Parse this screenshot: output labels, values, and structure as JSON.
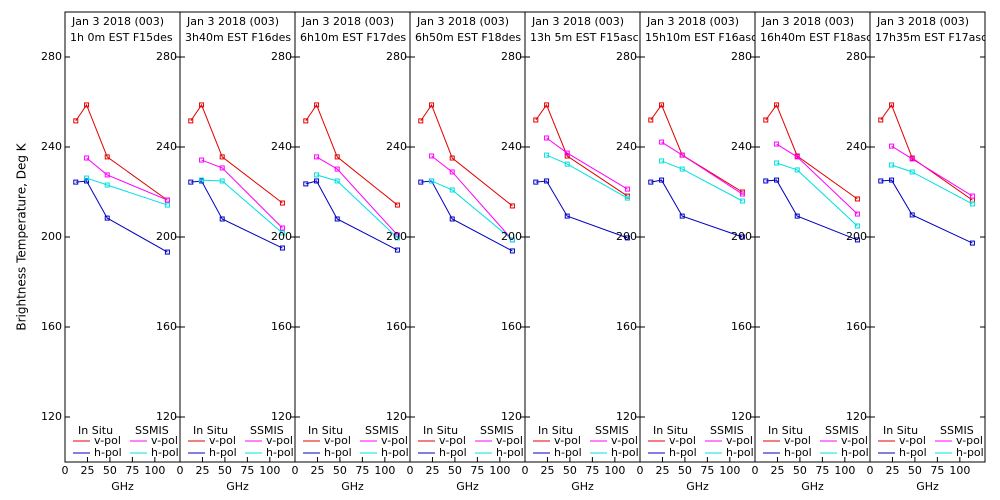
{
  "chart_data": [
    {
      "type": "line",
      "title": "Jan 3 2018 (003)",
      "subtitle": "1h 0m  EST F15des",
      "x_label": "GHz",
      "y_label": "Brightness Temperature, Deg K",
      "xlim": [
        0,
        128
      ],
      "xticks": [
        0,
        25,
        50,
        75,
        100
      ],
      "ylim": [
        100,
        300
      ],
      "yticks": [
        120,
        160,
        200,
        240,
        280
      ],
      "series": [
        {
          "name": "v-pol",
          "source": "In Situ",
          "color": "#e00000",
          "x": [
            12,
            24,
            47,
            114
          ],
          "values": [
            251.6,
            258.7,
            235.6,
            216.4
          ]
        },
        {
          "name": "h-pol",
          "source": "In Situ",
          "color": "#0000c0",
          "x": [
            12,
            24,
            47,
            114
          ],
          "values": [
            224.4,
            224.9,
            208.4,
            193.3
          ]
        },
        {
          "name": "v-pol",
          "source": "SSMIS",
          "color": "#ff00ff",
          "x": [
            24,
            47,
            114
          ],
          "values": [
            235.1,
            227.6,
            216.4
          ]
        },
        {
          "name": "h-pol",
          "source": "SSMIS",
          "color": "#00e0e0",
          "x": [
            24,
            47,
            114
          ],
          "values": [
            226.2,
            223.1,
            214.2
          ]
        }
      ]
    },
    {
      "type": "line",
      "title": "Jan 3 2018 (003)",
      "subtitle": "3h40m  EST F16des",
      "x_label": "GHz",
      "xlim": [
        0,
        128
      ],
      "xticks": [
        0,
        25,
        50,
        75,
        100
      ],
      "ylim": [
        100,
        300
      ],
      "yticks": [
        120,
        160,
        200,
        240,
        280
      ],
      "series": [
        {
          "name": "v-pol",
          "source": "In Situ",
          "color": "#e00000",
          "x": [
            12,
            24,
            47,
            114
          ],
          "values": [
            251.6,
            258.7,
            235.6,
            215.1
          ]
        },
        {
          "name": "h-pol",
          "source": "In Situ",
          "color": "#0000c0",
          "x": [
            12,
            24,
            47,
            114
          ],
          "values": [
            224.4,
            224.9,
            208.0,
            195.1
          ]
        },
        {
          "name": "v-pol",
          "source": "SSMIS",
          "color": "#ff00ff",
          "x": [
            24,
            47,
            114
          ],
          "values": [
            234.2,
            230.7,
            204.0
          ]
        },
        {
          "name": "h-pol",
          "source": "SSMIS",
          "color": "#00e0e0",
          "x": [
            24,
            47,
            114
          ],
          "values": [
            225.3,
            224.9,
            201.8
          ]
        }
      ]
    },
    {
      "type": "line",
      "title": "Jan 3 2018 (003)",
      "subtitle": "6h10m  EST F17des",
      "x_label": "GHz",
      "xlim": [
        0,
        128
      ],
      "xticks": [
        0,
        25,
        50,
        75,
        100
      ],
      "ylim": [
        100,
        300
      ],
      "yticks": [
        120,
        160,
        200,
        240,
        280
      ],
      "series": [
        {
          "name": "v-pol",
          "source": "In Situ",
          "color": "#e00000",
          "x": [
            12,
            24,
            47,
            114
          ],
          "values": [
            251.6,
            258.7,
            235.6,
            214.2
          ]
        },
        {
          "name": "h-pol",
          "source": "In Situ",
          "color": "#0000c0",
          "x": [
            12,
            24,
            47,
            114
          ],
          "values": [
            223.6,
            224.9,
            208.0,
            194.2
          ]
        },
        {
          "name": "v-pol",
          "source": "SSMIS",
          "color": "#ff00ff",
          "x": [
            24,
            47,
            114
          ],
          "values": [
            235.6,
            230.2,
            200.9
          ]
        },
        {
          "name": "h-pol",
          "source": "SSMIS",
          "color": "#00e0e0",
          "x": [
            24,
            47,
            114
          ],
          "values": [
            227.6,
            224.9,
            199.6
          ]
        }
      ]
    },
    {
      "type": "line",
      "title": "Jan 3 2018 (003)",
      "subtitle": "6h50m  EST F18des",
      "x_label": "GHz",
      "xlim": [
        0,
        128
      ],
      "xticks": [
        0,
        25,
        50,
        75,
        100
      ],
      "ylim": [
        100,
        300
      ],
      "yticks": [
        120,
        160,
        200,
        240,
        280
      ],
      "series": [
        {
          "name": "v-pol",
          "source": "In Situ",
          "color": "#e00000",
          "x": [
            12,
            24,
            47,
            114
          ],
          "values": [
            251.6,
            258.7,
            235.1,
            213.8
          ]
        },
        {
          "name": "h-pol",
          "source": "In Situ",
          "color": "#0000c0",
          "x": [
            12,
            24,
            47,
            114
          ],
          "values": [
            224.4,
            224.9,
            208.0,
            193.8
          ]
        },
        {
          "name": "v-pol",
          "source": "SSMIS",
          "color": "#ff00ff",
          "x": [
            24,
            47,
            114
          ],
          "values": [
            236.0,
            228.9,
            198.7
          ]
        },
        {
          "name": "h-pol",
          "source": "SSMIS",
          "color": "#00e0e0",
          "x": [
            24,
            47,
            114
          ],
          "values": [
            224.9,
            220.9,
            198.7
          ]
        }
      ]
    },
    {
      "type": "line",
      "title": "Jan 3 2018 (003)",
      "subtitle": "13h 5m  EST F15asc",
      "x_label": "GHz",
      "xlim": [
        0,
        128
      ],
      "xticks": [
        0,
        25,
        50,
        75,
        100
      ],
      "ylim": [
        100,
        300
      ],
      "yticks": [
        120,
        160,
        200,
        240,
        280
      ],
      "series": [
        {
          "name": "v-pol",
          "source": "In Situ",
          "color": "#e00000",
          "x": [
            12,
            24,
            47,
            114
          ],
          "values": [
            252.0,
            258.7,
            236.0,
            218.2
          ]
        },
        {
          "name": "h-pol",
          "source": "In Situ",
          "color": "#0000c0",
          "x": [
            12,
            24,
            47,
            114
          ],
          "values": [
            224.4,
            224.9,
            209.3,
            199.6
          ]
        },
        {
          "name": "v-pol",
          "source": "SSMIS",
          "color": "#ff00ff",
          "x": [
            24,
            47,
            114
          ],
          "values": [
            244.0,
            237.3,
            221.3
          ]
        },
        {
          "name": "h-pol",
          "source": "SSMIS",
          "color": "#00e0e0",
          "x": [
            24,
            47,
            114
          ],
          "values": [
            236.4,
            232.4,
            217.3
          ]
        }
      ]
    },
    {
      "type": "line",
      "title": "Jan 3 2018 (003)",
      "subtitle": "15h10m  EST F16asc",
      "x_label": "GHz",
      "xlim": [
        0,
        128
      ],
      "xticks": [
        0,
        25,
        50,
        75,
        100
      ],
      "ylim": [
        100,
        300
      ],
      "yticks": [
        120,
        160,
        200,
        240,
        280
      ],
      "series": [
        {
          "name": "v-pol",
          "source": "In Situ",
          "color": "#e00000",
          "x": [
            12,
            24,
            47,
            114
          ],
          "values": [
            252.0,
            258.7,
            236.4,
            220.0
          ]
        },
        {
          "name": "h-pol",
          "source": "In Situ",
          "color": "#0000c0",
          "x": [
            12,
            24,
            47,
            114
          ],
          "values": [
            224.4,
            225.3,
            209.3,
            200.0
          ]
        },
        {
          "name": "v-pol",
          "source": "SSMIS",
          "color": "#ff00ff",
          "x": [
            24,
            47,
            114
          ],
          "values": [
            242.2,
            236.4,
            219.1
          ]
        },
        {
          "name": "h-pol",
          "source": "SSMIS",
          "color": "#00e0e0",
          "x": [
            24,
            47,
            114
          ],
          "values": [
            233.8,
            230.2,
            216.0
          ]
        }
      ]
    },
    {
      "type": "line",
      "title": "Jan 3 2018 (003)",
      "subtitle": "16h40m  EST F18asc",
      "x_label": "GHz",
      "xlim": [
        0,
        128
      ],
      "xticks": [
        0,
        25,
        50,
        75,
        100
      ],
      "ylim": [
        100,
        300
      ],
      "yticks": [
        120,
        160,
        200,
        240,
        280
      ],
      "series": [
        {
          "name": "v-pol",
          "source": "In Situ",
          "color": "#e00000",
          "x": [
            12,
            24,
            47,
            114
          ],
          "values": [
            252.0,
            258.7,
            236.0,
            216.9
          ]
        },
        {
          "name": "h-pol",
          "source": "In Situ",
          "color": "#0000c0",
          "x": [
            12,
            24,
            47,
            114
          ],
          "values": [
            224.9,
            225.3,
            209.3,
            198.7
          ]
        },
        {
          "name": "v-pol",
          "source": "SSMIS",
          "color": "#ff00ff",
          "x": [
            24,
            47,
            114
          ],
          "values": [
            241.3,
            235.6,
            210.2
          ]
        },
        {
          "name": "h-pol",
          "source": "SSMIS",
          "color": "#00e0e0",
          "x": [
            24,
            47,
            114
          ],
          "values": [
            232.9,
            229.8,
            204.9
          ]
        }
      ]
    },
    {
      "type": "line",
      "title": "Jan 3 2018 (003)",
      "subtitle": "17h35m  EST F17asc",
      "x_label": "GHz",
      "xlim": [
        0,
        128
      ],
      "xticks": [
        0,
        25,
        50,
        75,
        100
      ],
      "ylim": [
        100,
        300
      ],
      "yticks": [
        120,
        160,
        200,
        240,
        280
      ],
      "series": [
        {
          "name": "v-pol",
          "source": "In Situ",
          "color": "#e00000",
          "x": [
            12,
            24,
            47,
            114
          ],
          "values": [
            252.0,
            258.7,
            235.1,
            216.4
          ]
        },
        {
          "name": "h-pol",
          "source": "In Situ",
          "color": "#0000c0",
          "x": [
            12,
            24,
            47,
            114
          ],
          "values": [
            224.9,
            225.3,
            209.8,
            197.3
          ]
        },
        {
          "name": "v-pol",
          "source": "SSMIS",
          "color": "#ff00ff",
          "x": [
            24,
            47,
            114
          ],
          "values": [
            240.4,
            234.7,
            218.2
          ]
        },
        {
          "name": "h-pol",
          "source": "SSMIS",
          "color": "#00e0e0",
          "x": [
            24,
            47,
            114
          ],
          "values": [
            232.0,
            228.9,
            214.7
          ]
        }
      ]
    }
  ]
}
